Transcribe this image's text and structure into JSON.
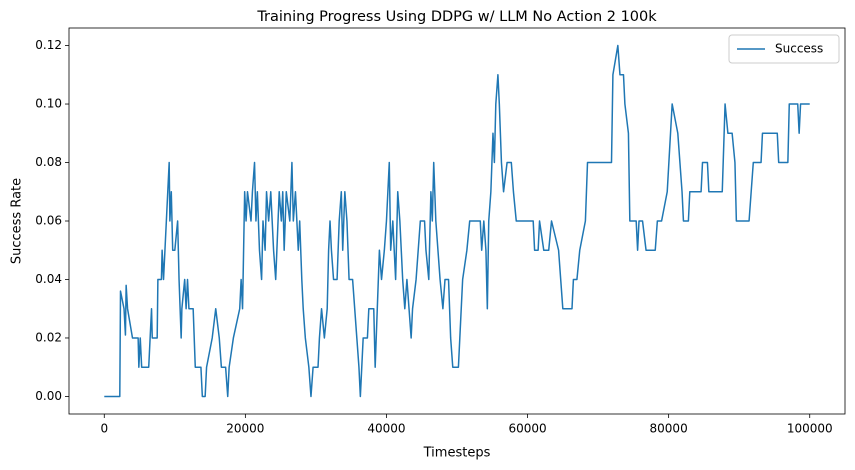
{
  "chart_data": {
    "type": "line",
    "title": "Training Progress Using DDPG w/ LLM No Action 2 100k",
    "x_label": "Timesteps",
    "y_label": "Success Rate",
    "legend": "upper right",
    "xlim": [
      -5000,
      105000
    ],
    "xticks": [
      0,
      20000,
      40000,
      60000,
      80000,
      100000
    ],
    "ylim": [
      -0.006,
      0.126
    ],
    "yticks": [
      {
        "value": 0,
        "label": "0.00"
      },
      {
        "value": 0.02,
        "label": "0.02"
      },
      {
        "value": 0.04,
        "label": "0.04"
      },
      {
        "value": 0.06,
        "label": "0.06"
      },
      {
        "value": 0.08,
        "label": "0.08"
      },
      {
        "value": 0.1,
        "label": "0.10"
      },
      {
        "value": 0.12,
        "label": "0.12"
      }
    ],
    "x": [
      0,
      2200,
      2300,
      2800,
      3000,
      3100,
      3300,
      4000,
      4800,
      4900,
      5100,
      5300,
      6300,
      6500,
      6700,
      6800,
      7500,
      7600,
      8100,
      8200,
      8400,
      8600,
      8800,
      9000,
      9200,
      9300,
      9500,
      9700,
      10000,
      10400,
      10600,
      10900,
      11000,
      11400,
      11600,
      11800,
      12000,
      12600,
      12900,
      13700,
      13900,
      14300,
      14500,
      15300,
      15800,
      16300,
      16600,
      17200,
      17500,
      17700,
      18300,
      19200,
      19400,
      19600,
      19900,
      20100,
      20300,
      20800,
      21000,
      21300,
      21500,
      21700,
      22000,
      22300,
      22500,
      22800,
      23000,
      23300,
      23600,
      24000,
      24300,
      24800,
      25100,
      25300,
      25500,
      25800,
      26300,
      26600,
      26800,
      27100,
      27500,
      27700,
      28000,
      28200,
      28500,
      29000,
      29300,
      29600,
      30300,
      30500,
      30800,
      31200,
      31600,
      31800,
      32000,
      32200,
      32500,
      33000,
      33300,
      33600,
      33800,
      34100,
      34400,
      34700,
      35200,
      35500,
      35800,
      36100,
      36300,
      36500,
      36700,
      37300,
      37500,
      38200,
      38400,
      38700,
      39000,
      39300,
      39700,
      40000,
      40200,
      40400,
      40600,
      40900,
      41300,
      41600,
      41900,
      42300,
      42600,
      42900,
      43200,
      43500,
      43700,
      44200,
      44500,
      44800,
      45400,
      45600,
      46000,
      46300,
      46500,
      46700,
      47000,
      47300,
      47600,
      48000,
      48300,
      48800,
      49100,
      49400,
      50200,
      50400,
      50800,
      51400,
      51800,
      53300,
      53500,
      53800,
      54100,
      54300,
      54500,
      54800,
      55100,
      55300,
      55500,
      55800,
      56000,
      56300,
      56600,
      57100,
      57700,
      58000,
      58400,
      60800,
      61000,
      61500,
      61700,
      62300,
      63000,
      63400,
      64400,
      64700,
      65000,
      66300,
      66500,
      67000,
      67400,
      68200,
      68500,
      71900,
      72100,
      72800,
      73100,
      73600,
      73800,
      74300,
      74500,
      75400,
      75600,
      75800,
      76300,
      76800,
      78100,
      78400,
      79000,
      79800,
      80500,
      81300,
      81900,
      82100,
      82800,
      83000,
      84600,
      84800,
      85500,
      85700,
      87600,
      88000,
      88400,
      89000,
      89400,
      89600,
      91400,
      91700,
      92000,
      93100,
      93300,
      95400,
      95600,
      96900,
      97100,
      98300,
      98500,
      98700,
      100000
    ],
    "series": [
      {
        "name": "Success",
        "color": "#1f77b4",
        "values": [
          0,
          0,
          0.036,
          0.03,
          0.021,
          0.038,
          0.03,
          0.02,
          0.02,
          0.01,
          0.02,
          0.01,
          0.01,
          0.02,
          0.03,
          0.02,
          0.02,
          0.04,
          0.04,
          0.05,
          0.04,
          0.05,
          0.06,
          0.07,
          0.08,
          0.06,
          0.07,
          0.05,
          0.05,
          0.06,
          0.04,
          0.02,
          0.03,
          0.04,
          0.03,
          0.04,
          0.03,
          0.03,
          0.01,
          0.01,
          0,
          0,
          0.01,
          0.02,
          0.03,
          0.02,
          0.01,
          0.01,
          0,
          0.01,
          0.02,
          0.03,
          0.04,
          0.03,
          0.07,
          0.06,
          0.07,
          0.06,
          0.07,
          0.08,
          0.06,
          0.07,
          0.05,
          0.04,
          0.06,
          0.05,
          0.07,
          0.06,
          0.07,
          0.05,
          0.04,
          0.07,
          0.06,
          0.07,
          0.05,
          0.07,
          0.06,
          0.08,
          0.06,
          0.07,
          0.05,
          0.06,
          0.04,
          0.03,
          0.02,
          0.01,
          0,
          0.01,
          0.01,
          0.02,
          0.03,
          0.02,
          0.03,
          0.05,
          0.06,
          0.05,
          0.04,
          0.04,
          0.06,
          0.07,
          0.05,
          0.07,
          0.06,
          0.04,
          0.04,
          0.03,
          0.02,
          0.01,
          0,
          0.01,
          0.02,
          0.02,
          0.03,
          0.03,
          0.01,
          0.03,
          0.05,
          0.04,
          0.05,
          0.06,
          0.07,
          0.08,
          0.05,
          0.06,
          0.04,
          0.07,
          0.06,
          0.04,
          0.03,
          0.04,
          0.03,
          0.02,
          0.03,
          0.04,
          0.05,
          0.06,
          0.06,
          0.05,
          0.04,
          0.07,
          0.06,
          0.08,
          0.06,
          0.05,
          0.04,
          0.03,
          0.04,
          0.04,
          0.02,
          0.01,
          0.01,
          0.02,
          0.04,
          0.05,
          0.06,
          0.06,
          0.05,
          0.06,
          0.05,
          0.03,
          0.06,
          0.07,
          0.09,
          0.08,
          0.1,
          0.11,
          0.1,
          0.08,
          0.07,
          0.08,
          0.08,
          0.07,
          0.06,
          0.06,
          0.05,
          0.05,
          0.06,
          0.05,
          0.05,
          0.06,
          0.05,
          0.04,
          0.03,
          0.03,
          0.04,
          0.04,
          0.05,
          0.06,
          0.08,
          0.08,
          0.11,
          0.12,
          0.11,
          0.11,
          0.1,
          0.09,
          0.06,
          0.06,
          0.05,
          0.06,
          0.06,
          0.05,
          0.05,
          0.06,
          0.06,
          0.07,
          0.1,
          0.09,
          0.07,
          0.06,
          0.06,
          0.07,
          0.07,
          0.08,
          0.08,
          0.07,
          0.07,
          0.1,
          0.09,
          0.09,
          0.08,
          0.06,
          0.06,
          0.07,
          0.08,
          0.08,
          0.09,
          0.09,
          0.08,
          0.08,
          0.1,
          0.1,
          0.09,
          0.1,
          0.1
        ]
      }
    ]
  }
}
